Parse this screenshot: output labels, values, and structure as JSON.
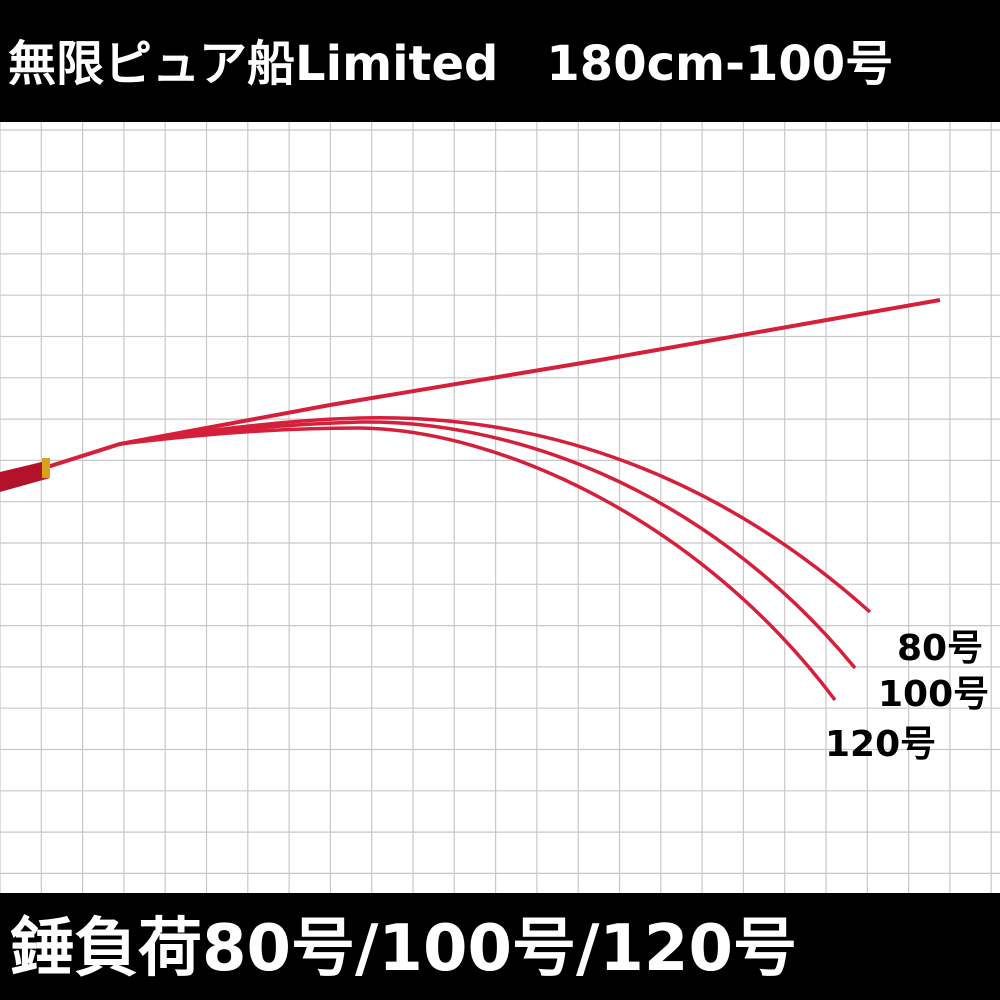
{
  "header": {
    "title": "無限ピュア船Limited　180cm-100号"
  },
  "labels": [
    "80号",
    "100号",
    "120号"
  ],
  "footer": {
    "text": "錘負荷80号/100号/120号"
  }
}
